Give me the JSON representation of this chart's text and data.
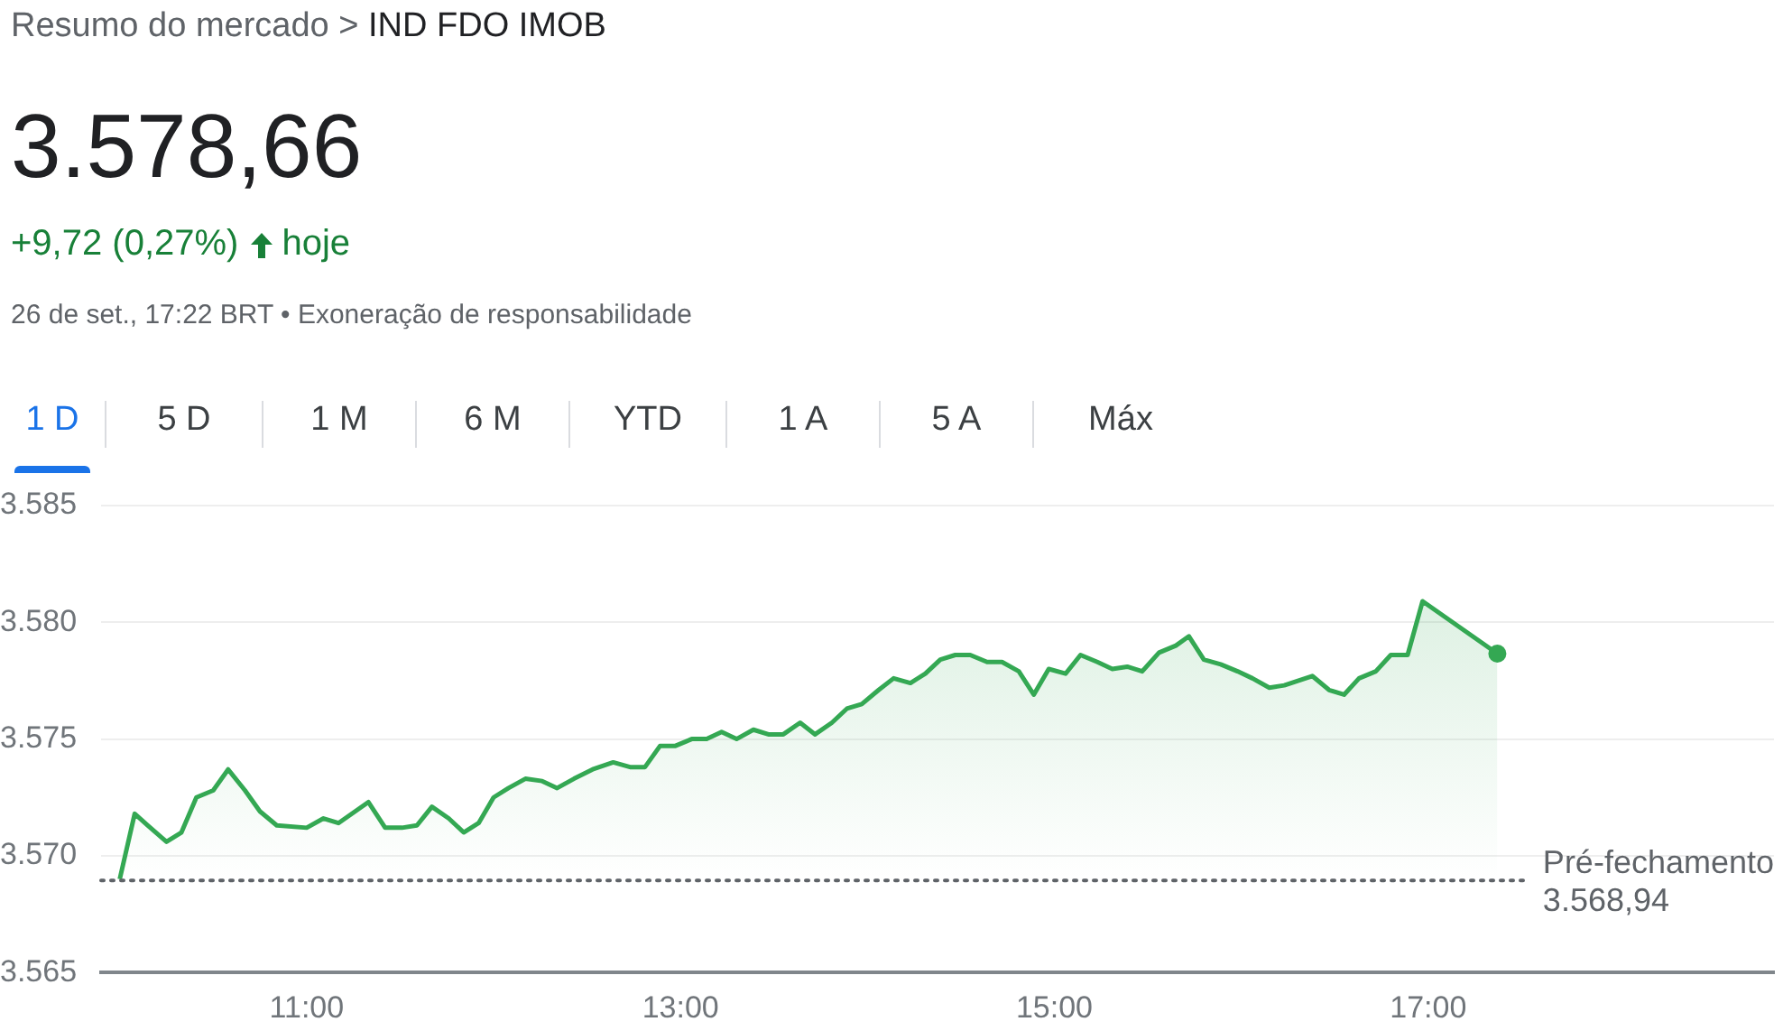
{
  "chart_data": {
    "type": "area",
    "title": "Resumo do mercado > IND FDO IMOB",
    "subtitle": "3.578,66",
    "annotations": [
      "+9,72 (0,27%) hoje",
      "26 de set., 17:22 BRT • Exoneração de responsabilidade",
      "1 D",
      "5 D",
      "1 M",
      "6 M",
      "YTD",
      "1 A",
      "5 A",
      "Máx"
    ],
    "x": [
      10.0,
      10.08,
      10.15,
      10.25,
      10.33,
      10.41,
      10.5,
      10.58,
      10.67,
      10.75,
      10.84,
      11.0,
      11.09,
      11.17,
      11.33,
      11.42,
      11.51,
      11.59,
      11.67,
      11.76,
      11.84,
      11.92,
      12.0,
      12.08,
      12.17,
      12.26,
      12.34,
      12.43,
      12.53,
      12.64,
      12.73,
      12.81,
      12.89,
      12.97,
      13.06,
      13.14,
      13.22,
      13.3,
      13.39,
      13.47,
      13.55,
      13.64,
      13.72,
      13.81,
      13.89,
      13.97,
      14.06,
      14.14,
      14.23,
      14.31,
      14.39,
      14.47,
      14.55,
      14.64,
      14.72,
      14.81,
      14.89,
      14.97,
      15.06,
      15.14,
      15.23,
      15.31,
      15.39,
      15.47,
      15.56,
      15.65,
      15.72,
      15.8,
      15.89,
      15.98,
      16.06,
      16.15,
      16.23,
      16.38,
      16.47,
      16.55,
      16.63,
      16.72,
      16.8,
      16.89,
      16.97,
      17.37
    ],
    "series": [
      {
        "color": "#34a853",
        "values": [
          3569.0,
          3571.8,
          3571.3,
          3570.6,
          3571.0,
          3572.5,
          3572.8,
          3573.7,
          3572.8,
          3571.9,
          3571.3,
          3571.2,
          3571.6,
          3571.4,
          3572.3,
          3571.2,
          3571.2,
          3571.3,
          3572.1,
          3571.6,
          3571.0,
          3571.4,
          3572.5,
          3572.9,
          3573.3,
          3573.2,
          3572.9,
          3573.3,
          3573.7,
          3574.0,
          3573.8,
          3573.8,
          3574.7,
          3574.7,
          3575.0,
          3575.0,
          3575.3,
          3575.0,
          3575.4,
          3575.2,
          3575.2,
          3575.7,
          3575.2,
          3575.7,
          3576.3,
          3576.5,
          3577.1,
          3577.6,
          3577.4,
          3577.8,
          3578.4,
          3578.6,
          3578.6,
          3578.3,
          3578.3,
          3577.9,
          3576.9,
          3578.0,
          3577.8,
          3578.6,
          3578.3,
          3578.0,
          3578.1,
          3577.9,
          3578.7,
          3579.0,
          3579.4,
          3578.4,
          3578.2,
          3577.9,
          3577.6,
          3577.2,
          3577.3,
          3577.7,
          3577.1,
          3576.9,
          3577.6,
          3577.9,
          3578.6,
          3578.6,
          3580.9,
          3578.66
        ]
      }
    ],
    "xlim": [
      9.9,
      18.85
    ],
    "xticks": [
      {
        "value": 11,
        "label": "11:00"
      },
      {
        "value": 13,
        "label": "13:00"
      },
      {
        "value": 15,
        "label": "15:00"
      },
      {
        "value": 17,
        "label": "17:00"
      }
    ],
    "ylim": [
      3565,
      3585
    ],
    "yticks": [
      {
        "value": 3565,
        "label": "3.565"
      },
      {
        "value": 3570,
        "label": "3.570"
      },
      {
        "value": 3575,
        "label": "3.575"
      },
      {
        "value": 3580,
        "label": "3.580"
      },
      {
        "value": 3585,
        "label": "3.585"
      }
    ],
    "grid": "y",
    "legend": false,
    "ref_lines": [
      {
        "axis": "y",
        "value": 3568.94,
        "label": "Pré-fechamento 3.568,94",
        "line_style": "dotted",
        "color": "#5f6368"
      }
    ]
  }
}
